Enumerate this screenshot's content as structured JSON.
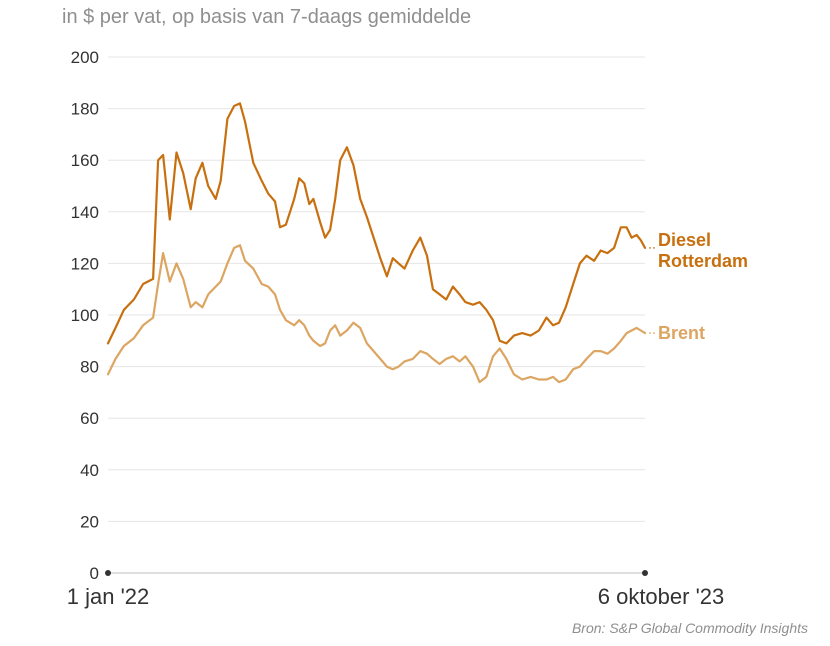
{
  "subtitle": "in $ per vat, op basis van 7-daags gemiddelde",
  "source": "Bron: S&P Global Commodity Insights",
  "chart_data": {
    "type": "line",
    "title": "",
    "xlabel": "",
    "ylabel": "",
    "x_range": [
      "2022-01-01",
      "2023-10-06"
    ],
    "x_tick_labels": [
      "1 jan '22",
      "6 oktober '23"
    ],
    "ylim": [
      0,
      200
    ],
    "yticks": [
      0,
      20,
      40,
      60,
      80,
      100,
      120,
      140,
      160,
      180,
      200
    ],
    "grid": true,
    "legend": "direct labels at line ends",
    "series": [
      {
        "name": "Diesel Rotterdam",
        "color": "#c8700f",
        "points": [
          [
            "2022-01-01",
            89
          ],
          [
            "2022-01-10",
            95
          ],
          [
            "2022-01-20",
            102
          ],
          [
            "2022-02-01",
            106
          ],
          [
            "2022-02-12",
            112
          ],
          [
            "2022-02-24",
            114
          ],
          [
            "2022-03-02",
            160
          ],
          [
            "2022-03-08",
            162
          ],
          [
            "2022-03-16",
            137
          ],
          [
            "2022-03-24",
            163
          ],
          [
            "2022-04-01",
            155
          ],
          [
            "2022-04-10",
            141
          ],
          [
            "2022-04-16",
            153
          ],
          [
            "2022-04-24",
            159
          ],
          [
            "2022-05-01",
            150
          ],
          [
            "2022-05-10",
            145
          ],
          [
            "2022-05-16",
            152
          ],
          [
            "2022-05-24",
            176
          ],
          [
            "2022-06-01",
            181
          ],
          [
            "2022-06-08",
            182
          ],
          [
            "2022-06-14",
            175
          ],
          [
            "2022-06-24",
            159
          ],
          [
            "2022-07-04",
            152
          ],
          [
            "2022-07-12",
            147
          ],
          [
            "2022-07-20",
            144
          ],
          [
            "2022-07-26",
            134
          ],
          [
            "2022-08-02",
            135
          ],
          [
            "2022-08-12",
            145
          ],
          [
            "2022-08-18",
            153
          ],
          [
            "2022-08-24",
            151
          ],
          [
            "2022-08-30",
            143
          ],
          [
            "2022-09-04",
            145
          ],
          [
            "2022-09-12",
            136
          ],
          [
            "2022-09-18",
            130
          ],
          [
            "2022-09-24",
            133
          ],
          [
            "2022-09-30",
            145
          ],
          [
            "2022-10-06",
            160
          ],
          [
            "2022-10-14",
            165
          ],
          [
            "2022-10-22",
            158
          ],
          [
            "2022-10-30",
            145
          ],
          [
            "2022-11-07",
            138
          ],
          [
            "2022-11-15",
            130
          ],
          [
            "2022-11-23",
            122
          ],
          [
            "2022-12-01",
            115
          ],
          [
            "2022-12-08",
            122
          ],
          [
            "2022-12-15",
            120
          ],
          [
            "2022-12-22",
            118
          ],
          [
            "2023-01-01",
            125
          ],
          [
            "2023-01-10",
            130
          ],
          [
            "2023-01-18",
            123
          ],
          [
            "2023-01-25",
            110
          ],
          [
            "2023-02-02",
            108
          ],
          [
            "2023-02-10",
            106
          ],
          [
            "2023-02-18",
            111
          ],
          [
            "2023-02-26",
            108
          ],
          [
            "2023-03-05",
            105
          ],
          [
            "2023-03-14",
            104
          ],
          [
            "2023-03-22",
            105
          ],
          [
            "2023-03-30",
            102
          ],
          [
            "2023-04-07",
            98
          ],
          [
            "2023-04-15",
            90
          ],
          [
            "2023-04-23",
            89
          ],
          [
            "2023-05-02",
            92
          ],
          [
            "2023-05-12",
            93
          ],
          [
            "2023-05-22",
            92
          ],
          [
            "2023-06-01",
            94
          ],
          [
            "2023-06-10",
            99
          ],
          [
            "2023-06-18",
            96
          ],
          [
            "2023-06-25",
            97
          ],
          [
            "2023-07-03",
            103
          ],
          [
            "2023-07-12",
            112
          ],
          [
            "2023-07-20",
            120
          ],
          [
            "2023-07-28",
            123
          ],
          [
            "2023-08-06",
            121
          ],
          [
            "2023-08-14",
            125
          ],
          [
            "2023-08-22",
            124
          ],
          [
            "2023-08-30",
            126
          ],
          [
            "2023-09-07",
            134
          ],
          [
            "2023-09-14",
            134
          ],
          [
            "2023-09-20",
            130
          ],
          [
            "2023-09-26",
            131
          ],
          [
            "2023-10-01",
            129
          ],
          [
            "2023-10-06",
            126
          ]
        ]
      },
      {
        "name": "Brent",
        "color": "#dca562",
        "points": [
          [
            "2022-01-01",
            77
          ],
          [
            "2022-01-10",
            83
          ],
          [
            "2022-01-20",
            88
          ],
          [
            "2022-02-01",
            91
          ],
          [
            "2022-02-12",
            96
          ],
          [
            "2022-02-24",
            99
          ],
          [
            "2022-03-02",
            112
          ],
          [
            "2022-03-08",
            124
          ],
          [
            "2022-03-16",
            113
          ],
          [
            "2022-03-24",
            120
          ],
          [
            "2022-04-01",
            114
          ],
          [
            "2022-04-10",
            103
          ],
          [
            "2022-04-16",
            105
          ],
          [
            "2022-04-24",
            103
          ],
          [
            "2022-05-01",
            108
          ],
          [
            "2022-05-10",
            111
          ],
          [
            "2022-05-16",
            113
          ],
          [
            "2022-05-24",
            120
          ],
          [
            "2022-06-01",
            126
          ],
          [
            "2022-06-08",
            127
          ],
          [
            "2022-06-14",
            121
          ],
          [
            "2022-06-24",
            118
          ],
          [
            "2022-07-04",
            112
          ],
          [
            "2022-07-12",
            111
          ],
          [
            "2022-07-20",
            108
          ],
          [
            "2022-07-26",
            102
          ],
          [
            "2022-08-02",
            98
          ],
          [
            "2022-08-12",
            96
          ],
          [
            "2022-08-18",
            98
          ],
          [
            "2022-08-24",
            96
          ],
          [
            "2022-08-30",
            92
          ],
          [
            "2022-09-04",
            90
          ],
          [
            "2022-09-12",
            88
          ],
          [
            "2022-09-18",
            89
          ],
          [
            "2022-09-24",
            94
          ],
          [
            "2022-09-30",
            96
          ],
          [
            "2022-10-06",
            92
          ],
          [
            "2022-10-14",
            94
          ],
          [
            "2022-10-22",
            97
          ],
          [
            "2022-10-30",
            95
          ],
          [
            "2022-11-07",
            89
          ],
          [
            "2022-11-15",
            86
          ],
          [
            "2022-11-23",
            83
          ],
          [
            "2022-12-01",
            80
          ],
          [
            "2022-12-08",
            79
          ],
          [
            "2022-12-15",
            80
          ],
          [
            "2022-12-22",
            82
          ],
          [
            "2023-01-01",
            83
          ],
          [
            "2023-01-10",
            86
          ],
          [
            "2023-01-18",
            85
          ],
          [
            "2023-01-25",
            83
          ],
          [
            "2023-02-02",
            81
          ],
          [
            "2023-02-10",
            83
          ],
          [
            "2023-02-18",
            84
          ],
          [
            "2023-02-26",
            82
          ],
          [
            "2023-03-05",
            84
          ],
          [
            "2023-03-14",
            80
          ],
          [
            "2023-03-22",
            74
          ],
          [
            "2023-03-30",
            76
          ],
          [
            "2023-04-07",
            84
          ],
          [
            "2023-04-15",
            87
          ],
          [
            "2023-04-23",
            83
          ],
          [
            "2023-05-02",
            77
          ],
          [
            "2023-05-12",
            75
          ],
          [
            "2023-05-22",
            76
          ],
          [
            "2023-06-01",
            75
          ],
          [
            "2023-06-10",
            75
          ],
          [
            "2023-06-18",
            76
          ],
          [
            "2023-06-25",
            74
          ],
          [
            "2023-07-03",
            75
          ],
          [
            "2023-07-12",
            79
          ],
          [
            "2023-07-20",
            80
          ],
          [
            "2023-07-28",
            83
          ],
          [
            "2023-08-06",
            86
          ],
          [
            "2023-08-14",
            86
          ],
          [
            "2023-08-22",
            85
          ],
          [
            "2023-08-30",
            87
          ],
          [
            "2023-09-07",
            90
          ],
          [
            "2023-09-14",
            93
          ],
          [
            "2023-09-20",
            94
          ],
          [
            "2023-09-26",
            95
          ],
          [
            "2023-10-01",
            94
          ],
          [
            "2023-10-06",
            93
          ]
        ]
      }
    ],
    "series_labels": [
      {
        "lines": [
          "Diesel",
          "Rotterdam"
        ],
        "color": "#c8700f"
      },
      {
        "lines": [
          "Brent"
        ],
        "color": "#dca562"
      }
    ]
  }
}
